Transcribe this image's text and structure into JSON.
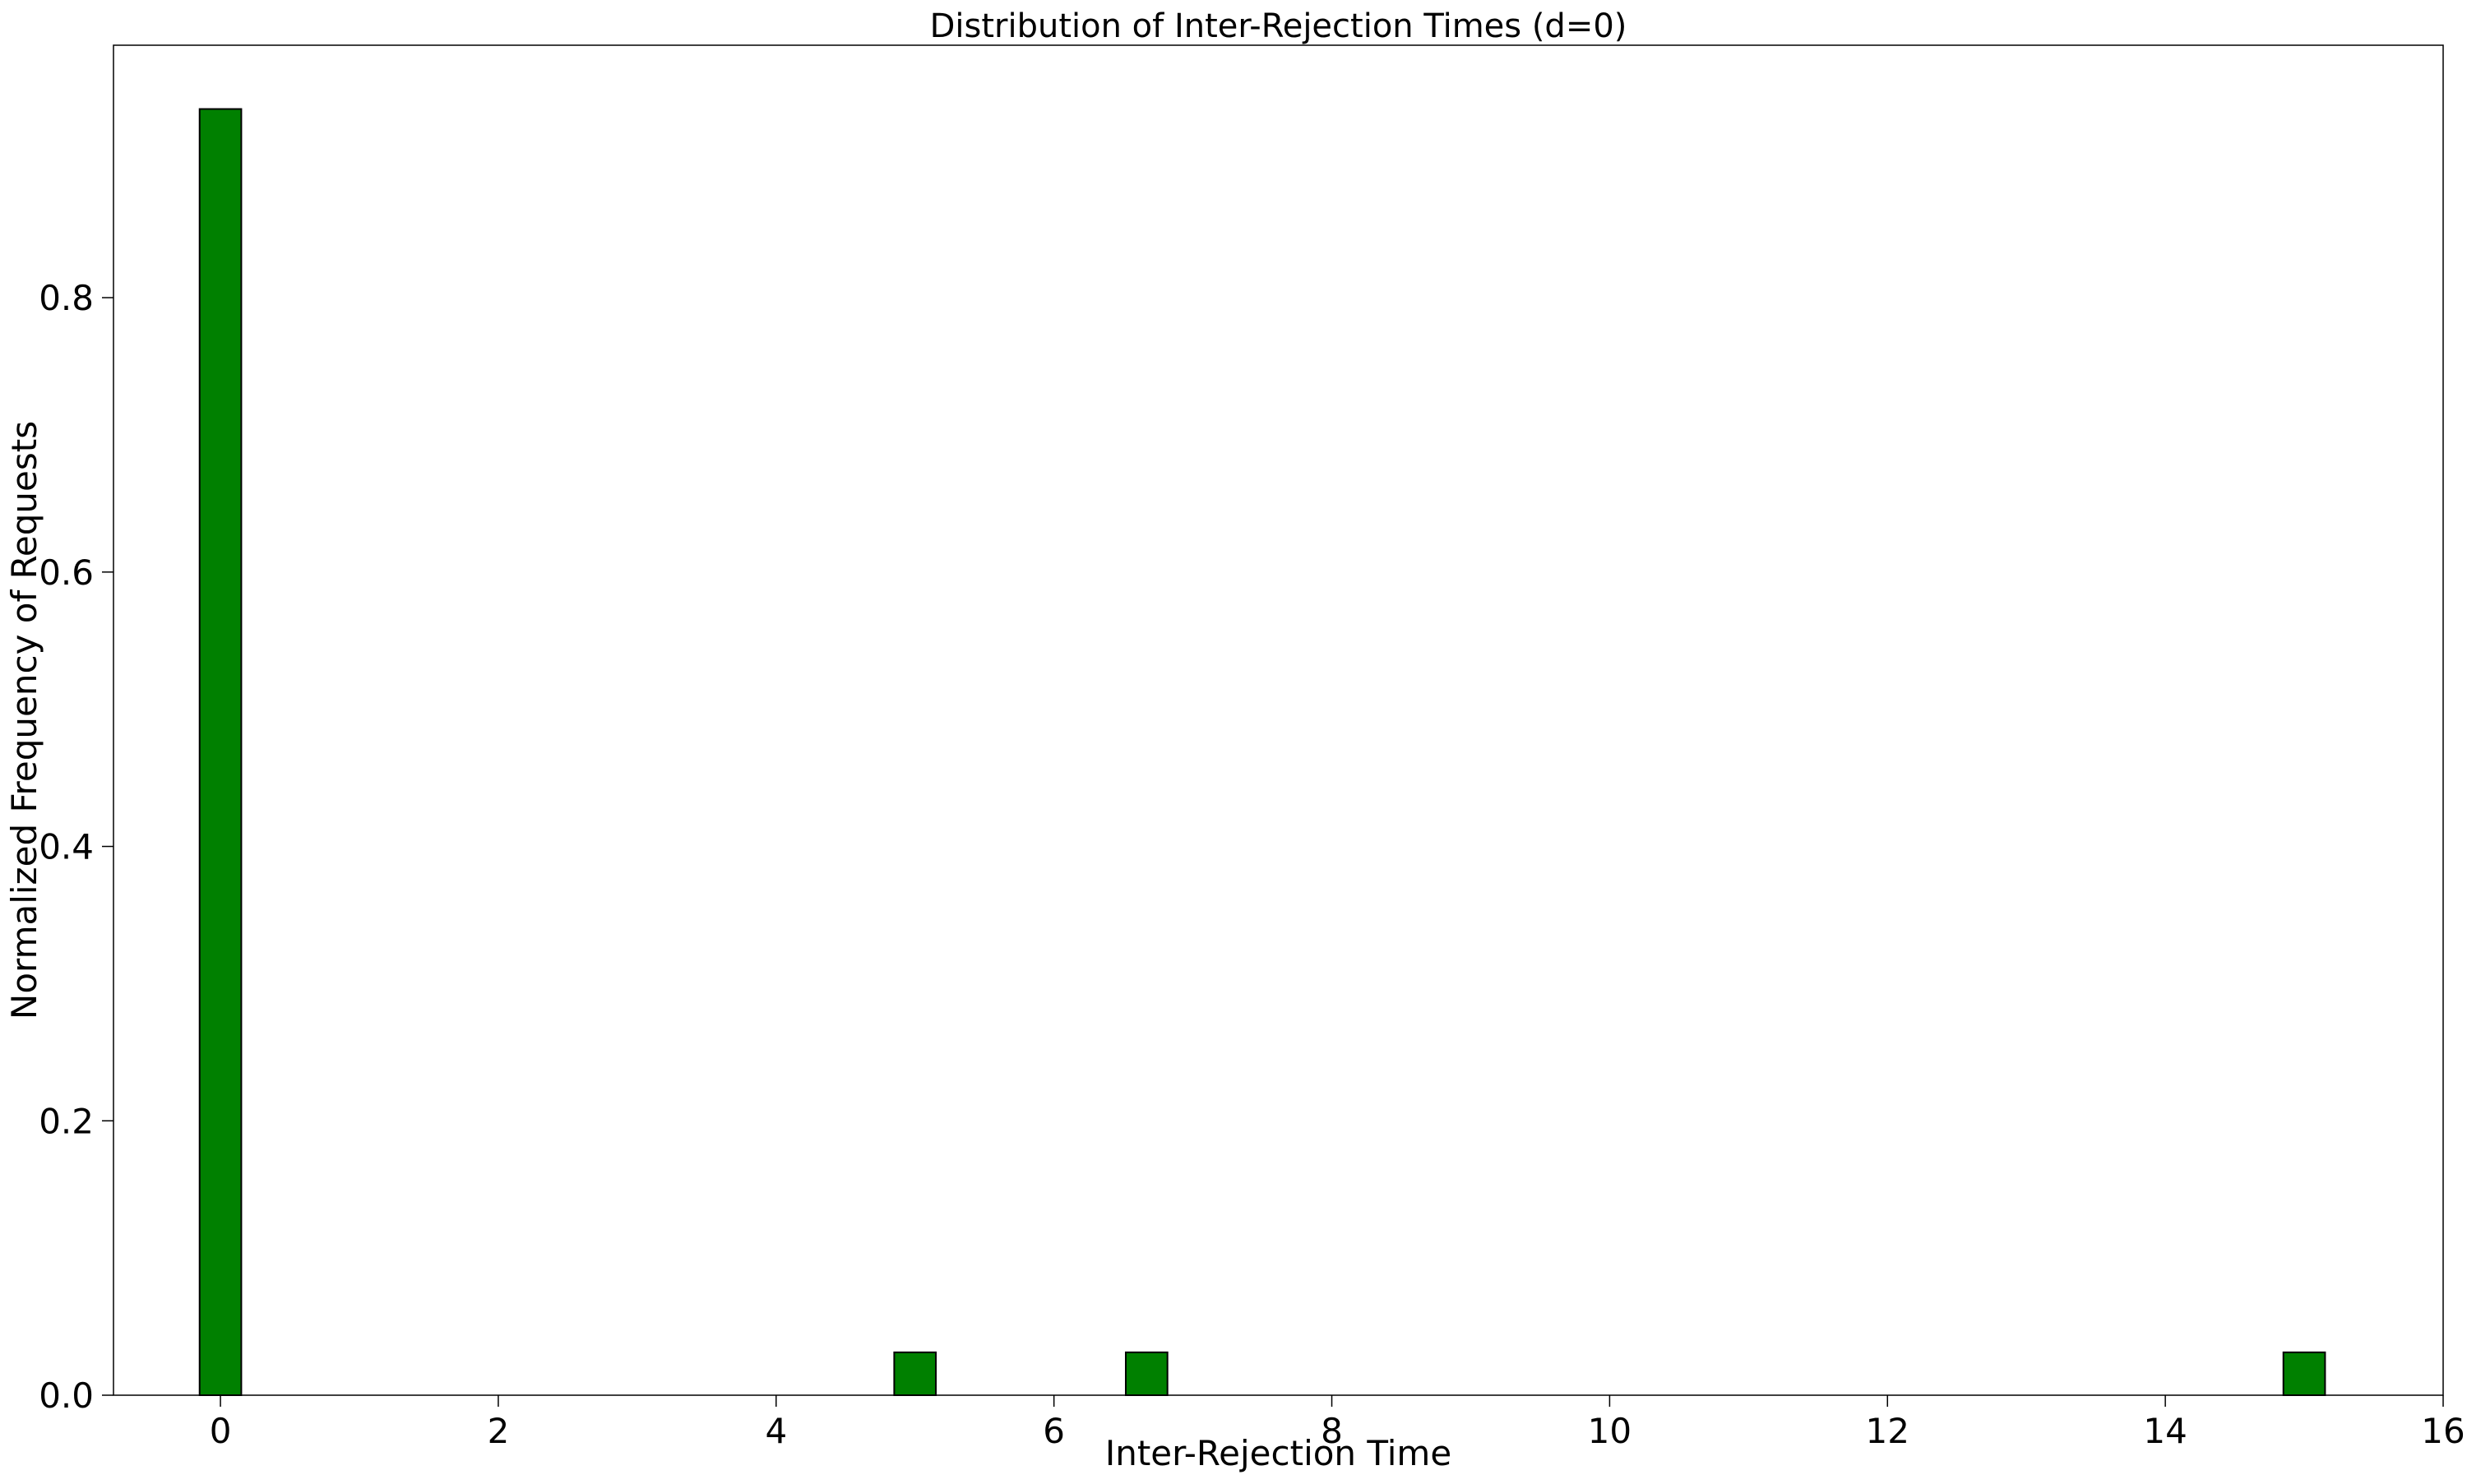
{
  "chart_data": {
    "type": "bar",
    "title": "Distribution of Inter-Rejection Times (d=0)",
    "xlabel": "Inter-Rejection Time",
    "ylabel": "Normalized Frequency of Requests",
    "xlim": [
      -0.77,
      16.0
    ],
    "ylim": [
      0,
      0.984
    ],
    "xticks": [
      0,
      2,
      4,
      6,
      8,
      10,
      12,
      14,
      16
    ],
    "yticks": [
      0.0,
      0.2,
      0.4,
      0.6,
      0.8
    ],
    "ytick_labels": [
      "0.0",
      "0.2",
      "0.4",
      "0.6",
      "0.8"
    ],
    "bar_width": 0.3,
    "bars": [
      {
        "x": 0.0,
        "value": 0.9375
      },
      {
        "x": 1.667,
        "value": 0.0
      },
      {
        "x": 3.333,
        "value": 0.0
      },
      {
        "x": 5.0,
        "value": 0.03125
      },
      {
        "x": 6.667,
        "value": 0.03125
      },
      {
        "x": 8.333,
        "value": 0.0
      },
      {
        "x": 10.0,
        "value": 0.0
      },
      {
        "x": 11.667,
        "value": 0.0
      },
      {
        "x": 13.333,
        "value": 0.0
      },
      {
        "x": 15.0,
        "value": 0.03125
      }
    ],
    "color": "#008000",
    "edge_color": "#000000",
    "grid": false,
    "legend": false
  }
}
